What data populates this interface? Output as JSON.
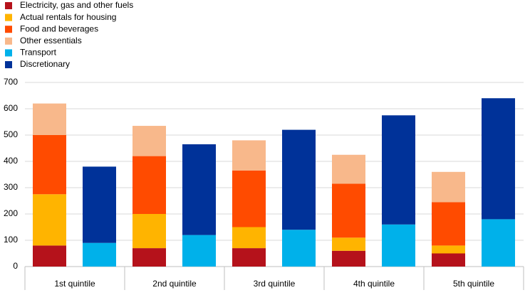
{
  "chart_data": {
    "type": "stacked-bar",
    "categories": [
      "1st quintile",
      "2nd quintile",
      "3rd quintile",
      "4th quintile",
      "5th quintile"
    ],
    "series": [
      {
        "name": "Electricity, gas and other fuels",
        "color": "#b5121b",
        "stack": 0,
        "values": [
          80,
          70,
          70,
          60,
          50
        ]
      },
      {
        "name": "Actual rentals for housing",
        "color": "#ffb400",
        "stack": 0,
        "values": [
          195,
          130,
          80,
          50,
          30
        ]
      },
      {
        "name": "Food and beverages",
        "color": "#ff4b00",
        "stack": 0,
        "values": [
          225,
          220,
          215,
          205,
          165
        ]
      },
      {
        "name": "Other essentials",
        "color": "#f8b88b",
        "stack": 0,
        "values": [
          120,
          115,
          115,
          110,
          115
        ]
      },
      {
        "name": "Transport",
        "color": "#00b1ea",
        "stack": 1,
        "values": [
          90,
          120,
          140,
          160,
          180
        ]
      },
      {
        "name": "Discretionary",
        "color": "#003299",
        "stack": 1,
        "values": [
          290,
          345,
          380,
          415,
          460
        ]
      }
    ],
    "ylim": [
      0,
      700
    ],
    "yticks": [
      0,
      100,
      200,
      300,
      400,
      500,
      600,
      700
    ],
    "grid": true,
    "legend": "top-left"
  }
}
